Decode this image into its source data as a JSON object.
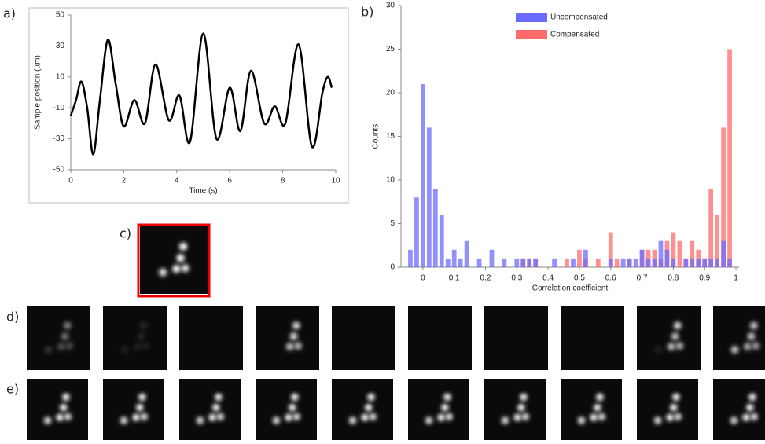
{
  "chart_data": [
    {
      "type": "line",
      "panel_label": "a)",
      "x_label": "Time (s)",
      "y_label": "Sample position (µm)",
      "x": [
        0,
        0.2,
        0.4,
        0.62,
        0.85,
        1.1,
        1.4,
        1.7,
        2.0,
        2.4,
        2.8,
        3.2,
        3.7,
        4.1,
        4.5,
        5.0,
        5.5,
        6.0,
        6.4,
        6.8,
        7.3,
        7.7,
        8.1,
        8.6,
        9.1,
        9.5,
        9.7,
        9.85
      ],
      "values": [
        -15,
        -5,
        7,
        -10,
        -40,
        -5,
        34,
        5,
        -22,
        -5,
        -20,
        18,
        -18,
        -2,
        -32,
        38,
        -30,
        3,
        -25,
        14,
        -20,
        -9,
        -20,
        31,
        -35,
        0,
        10,
        3
      ],
      "color": "#000000",
      "xlim": [
        0,
        10
      ],
      "xticks": [
        0,
        2,
        4,
        6,
        8,
        10
      ],
      "ylim": [
        -50,
        50
      ],
      "yticks": [
        -50,
        -30,
        -10,
        10,
        30,
        50
      ],
      "grid": false
    },
    {
      "type": "histogram",
      "panel_label": "b)",
      "x_label": "Correlation coefficient",
      "y_label": "Counts",
      "legend": "top",
      "bins": [
        -0.05,
        -0.03,
        -0.01,
        0.01,
        0.03,
        0.05,
        0.07,
        0.09,
        0.11,
        0.13,
        0.15,
        0.17,
        0.19,
        0.21,
        0.23,
        0.25,
        0.27,
        0.29,
        0.31,
        0.33,
        0.35,
        0.37,
        0.39,
        0.41,
        0.43,
        0.45,
        0.47,
        0.49,
        0.51,
        0.53,
        0.55,
        0.57,
        0.59,
        0.61,
        0.63,
        0.65,
        0.67,
        0.69,
        0.71,
        0.73,
        0.75,
        0.77,
        0.79,
        0.81,
        0.83,
        0.85,
        0.87,
        0.89,
        0.91,
        0.93,
        0.95,
        0.97,
        0.99
      ],
      "series": [
        {
          "name": "Compensated",
          "color": "#ff6b6b",
          "values": [
            0,
            0,
            0,
            0,
            0,
            0,
            0,
            0,
            0,
            0,
            0,
            0,
            0,
            0,
            0,
            0,
            0,
            0,
            1,
            1,
            1,
            0,
            0,
            0,
            0,
            1,
            0,
            2,
            1,
            0,
            1,
            0,
            4,
            1,
            0,
            1,
            0,
            2,
            2,
            2,
            1,
            3,
            4,
            3,
            1,
            3,
            2,
            1,
            9,
            6,
            16,
            25
          ]
        },
        {
          "name": "Uncompensated",
          "color": "#6b6bff",
          "values": [
            2,
            8,
            21,
            16,
            9,
            6,
            1,
            2,
            1,
            3,
            0,
            1,
            0,
            2,
            0,
            1,
            0,
            1,
            1,
            1,
            1,
            0,
            0,
            1,
            0,
            0,
            1,
            0,
            2,
            0,
            0,
            0,
            1,
            0,
            1,
            1,
            1,
            2,
            1,
            1,
            3,
            2,
            1,
            0,
            1,
            1,
            1,
            1,
            1,
            1,
            3,
            1
          ]
        }
      ],
      "xlim": [
        -0.07,
        1.01
      ],
      "xticks": [
        0,
        0.1,
        0.2,
        0.3,
        0.4,
        0.5,
        0.6,
        0.7,
        0.8,
        0.9,
        1
      ],
      "ylim": [
        0,
        30
      ],
      "yticks": [
        0,
        5,
        10,
        15,
        20,
        25,
        30
      ],
      "grid": false
    }
  ],
  "panels": {
    "c": {
      "label": "c)"
    },
    "d": {
      "label": "d)"
    },
    "e": {
      "label": "e)"
    }
  }
}
